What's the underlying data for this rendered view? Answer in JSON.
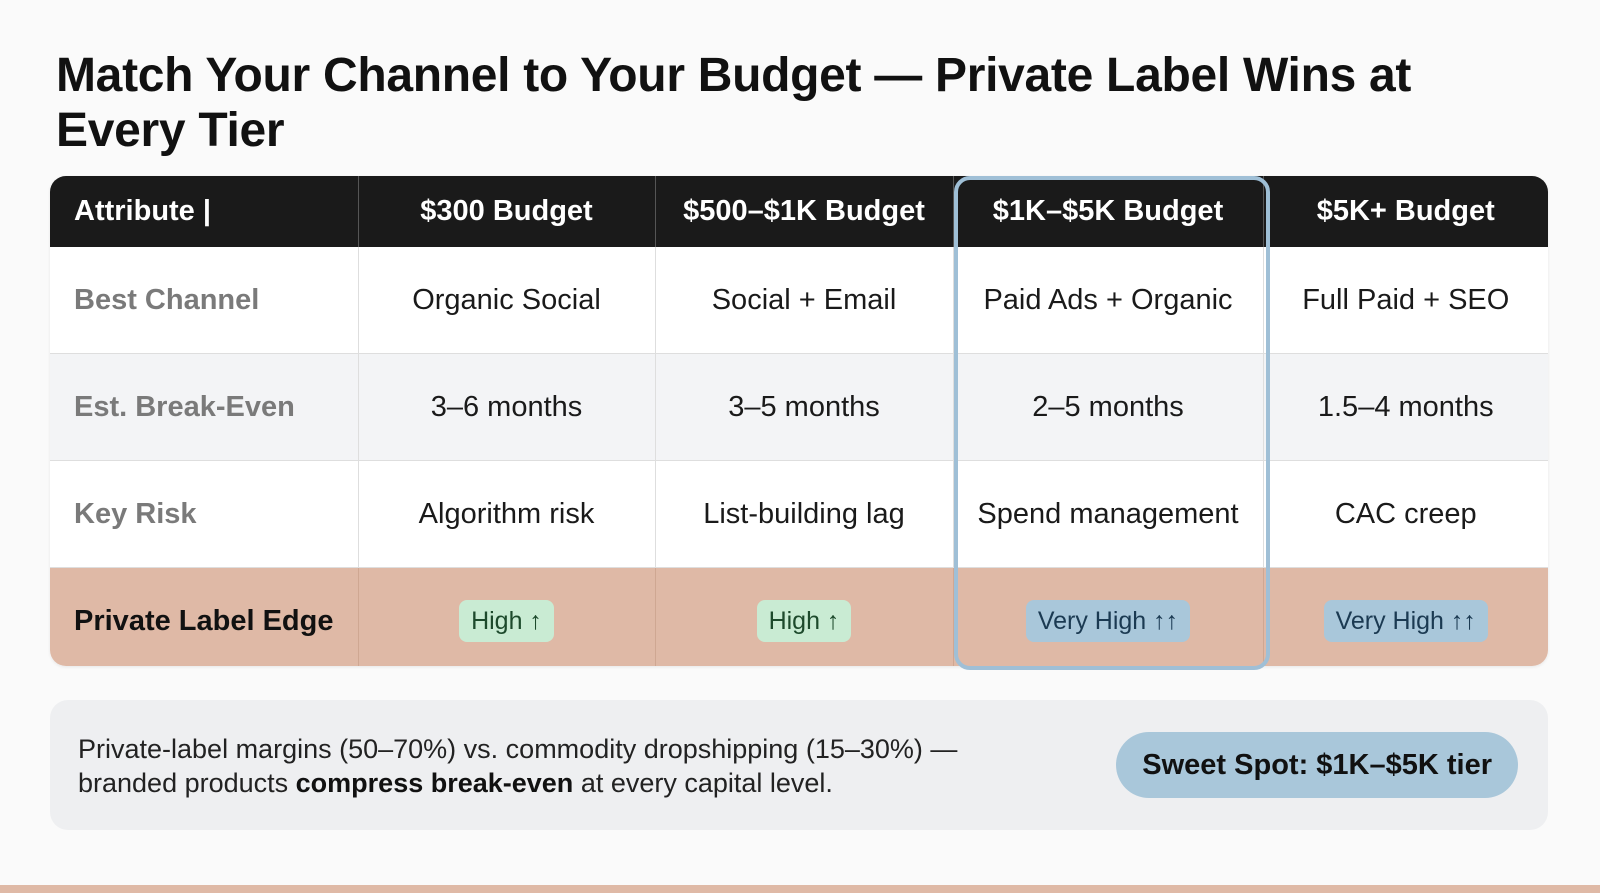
{
  "title": "Match Your Channel to Your Budget — Private Label Wins at Every Tier",
  "table": {
    "headers": [
      "Attribute |",
      "$300 Budget",
      "$500–$1K Budget",
      "$1K–$5K Budget",
      "$5K+ Budget"
    ],
    "rows": [
      {
        "label": "Best Channel",
        "cells": [
          "Organic Social",
          "Social + Email",
          "Paid Ads + Organic",
          "Full Paid + SEO"
        ]
      },
      {
        "label": "Est. Break-Even",
        "cells": [
          "3–6 months",
          "3–5 months",
          "2–5 months",
          "1.5–4 months"
        ]
      },
      {
        "label": "Key Risk",
        "cells": [
          "Algorithm risk",
          "List-building lag",
          "Spend management",
          "CAC creep"
        ]
      }
    ],
    "edge": {
      "label": "Private Label Edge",
      "badges": [
        "High ↑",
        "High ↑",
        "Very High ↑↑",
        "Very High ↑↑"
      ]
    },
    "highlighted_column": "$1K–$5K Budget"
  },
  "footer": {
    "text_before": "Private-label margins (50–70%) vs. commodity dropshipping (15–30%) — branded products ",
    "text_bold": "compress break-even",
    "text_after": " at every capital level.",
    "sweet_spot": "Sweet Spot: $1K–$5K tier"
  },
  "colors": {
    "header_bg": "#1a1a1a",
    "edge_row_bg": "#dfb9a6",
    "highlight_border": "#9fbfd6",
    "badge_green": "#c9ebd3",
    "badge_blue": "#a9c7da"
  }
}
